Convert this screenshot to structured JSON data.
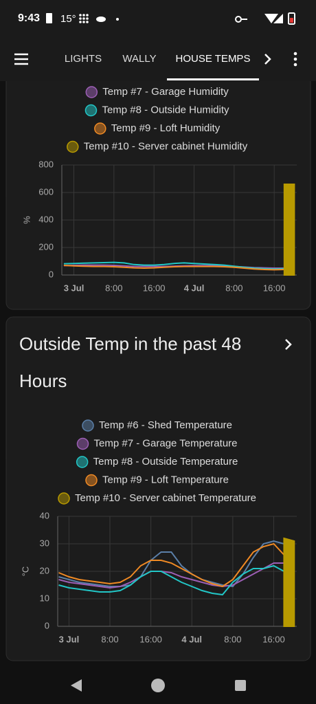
{
  "status_bar": {
    "time": "9:43",
    "temperature": "15°"
  },
  "tabs": [
    "LIGHTS",
    "WALLY",
    "HOUSE TEMPS"
  ],
  "chart_data": [
    {
      "type": "line",
      "y_label": "%",
      "grid": true,
      "x": [
        -2,
        0,
        2,
        4,
        6,
        8,
        10,
        12,
        14,
        16,
        18,
        20,
        22,
        24,
        26,
        28,
        30,
        32,
        34,
        36,
        38,
        40,
        42,
        44
      ],
      "xlim": [
        -2.4,
        44.5
      ],
      "xticks": [
        {
          "value": 0,
          "label": "3 Jul"
        },
        {
          "value": 8,
          "label": "8:00"
        },
        {
          "value": 16,
          "label": "16:00"
        },
        {
          "value": 24,
          "label": "4 Jul"
        },
        {
          "value": 32,
          "label": "8:00"
        },
        {
          "value": 40,
          "label": "16:00"
        }
      ],
      "ylim": [
        0,
        800
      ],
      "yticks": [
        0,
        200,
        400,
        600,
        800
      ],
      "series": [
        {
          "name": "Temp #7 - Garage Humidity",
          "color": "#9c5fb5",
          "values": [
            68,
            70,
            72,
            72,
            72,
            70,
            66,
            62,
            62,
            62,
            62,
            64,
            66,
            68,
            68,
            68,
            66,
            62,
            58,
            54,
            52,
            50,
            50,
            50
          ]
        },
        {
          "name": "Temp #8 - Outside Humidity",
          "color": "#22c7c7",
          "values": [
            82,
            84,
            86,
            88,
            90,
            92,
            88,
            76,
            72,
            72,
            76,
            84,
            88,
            84,
            80,
            76,
            72,
            64,
            56,
            50,
            46,
            44,
            46,
            48
          ]
        },
        {
          "name": "Temp #9 - Loft Humidity",
          "color": "#f08a24",
          "values": [
            70,
            66,
            64,
            62,
            62,
            60,
            56,
            52,
            50,
            52,
            56,
            60,
            62,
            62,
            62,
            62,
            60,
            56,
            50,
            44,
            40,
            38,
            40,
            40
          ]
        },
        {
          "name": "Temp #10 - Server cabinet Humidity",
          "color": "#b89a00",
          "area": true,
          "values": [
            null,
            null,
            null,
            null,
            null,
            null,
            null,
            null,
            null,
            null,
            null,
            null,
            null,
            null,
            null,
            null,
            null,
            null,
            null,
            null,
            null,
            null,
            660,
            660
          ]
        }
      ]
    },
    {
      "type": "line",
      "title": "Outside Temp in the past 48 Hours",
      "y_label": "°C",
      "grid": true,
      "x": [
        -2,
        0,
        2,
        4,
        6,
        8,
        10,
        12,
        14,
        16,
        18,
        20,
        22,
        24,
        26,
        28,
        30,
        32,
        34,
        36,
        38,
        40,
        42,
        44
      ],
      "xlim": [
        -2.2,
        44.5
      ],
      "xticks": [
        {
          "value": 0,
          "label": "3 Jul"
        },
        {
          "value": 8,
          "label": "8:00"
        },
        {
          "value": 16,
          "label": "16:00"
        },
        {
          "value": 24,
          "label": "4 Jul"
        },
        {
          "value": 32,
          "label": "8:00"
        },
        {
          "value": 40,
          "label": "16:00"
        }
      ],
      "ylim": [
        0,
        40
      ],
      "yticks": [
        0,
        10,
        20,
        30,
        40
      ],
      "series": [
        {
          "name": "Temp #6 - Shed Temperature",
          "color": "#5b7fa8",
          "values": [
            18,
            17,
            16,
            15.5,
            15,
            14.5,
            14.5,
            15,
            18,
            24,
            27,
            27,
            22,
            19,
            17,
            16,
            15,
            14.5,
            19,
            25,
            30,
            31,
            30,
            25
          ]
        },
        {
          "name": "Temp #7 - Garage Temperature",
          "color": "#9c5fb5",
          "values": [
            17,
            16,
            15.5,
            15,
            14.5,
            14,
            14.5,
            16,
            18,
            20,
            20,
            19.5,
            18,
            17,
            16,
            15,
            14.5,
            15,
            17,
            19,
            21,
            23,
            23,
            21
          ]
        },
        {
          "name": "Temp #8 - Outside Temperature",
          "color": "#22c7c7",
          "values": [
            15,
            14,
            13.5,
            13,
            12.5,
            12.5,
            13,
            15,
            18,
            20,
            20,
            18,
            16,
            14.5,
            13,
            12,
            11.5,
            16,
            19,
            21,
            21,
            22,
            20,
            18
          ]
        },
        {
          "name": "Temp #9 - Loft Temperature",
          "color": "#f08a24",
          "values": [
            19.5,
            18,
            17,
            16.5,
            16,
            15.5,
            16,
            18,
            22,
            24,
            24,
            23,
            21,
            19,
            17,
            15.5,
            14.5,
            17,
            22,
            27,
            29,
            30,
            26,
            22
          ]
        },
        {
          "name": "Temp #10 - Server cabinet Temperature",
          "color": "#b89a00",
          "area": true,
          "values": [
            null,
            null,
            null,
            null,
            null,
            null,
            null,
            null,
            null,
            null,
            null,
            null,
            null,
            null,
            null,
            null,
            null,
            null,
            null,
            null,
            null,
            null,
            32,
            31
          ]
        }
      ]
    }
  ]
}
